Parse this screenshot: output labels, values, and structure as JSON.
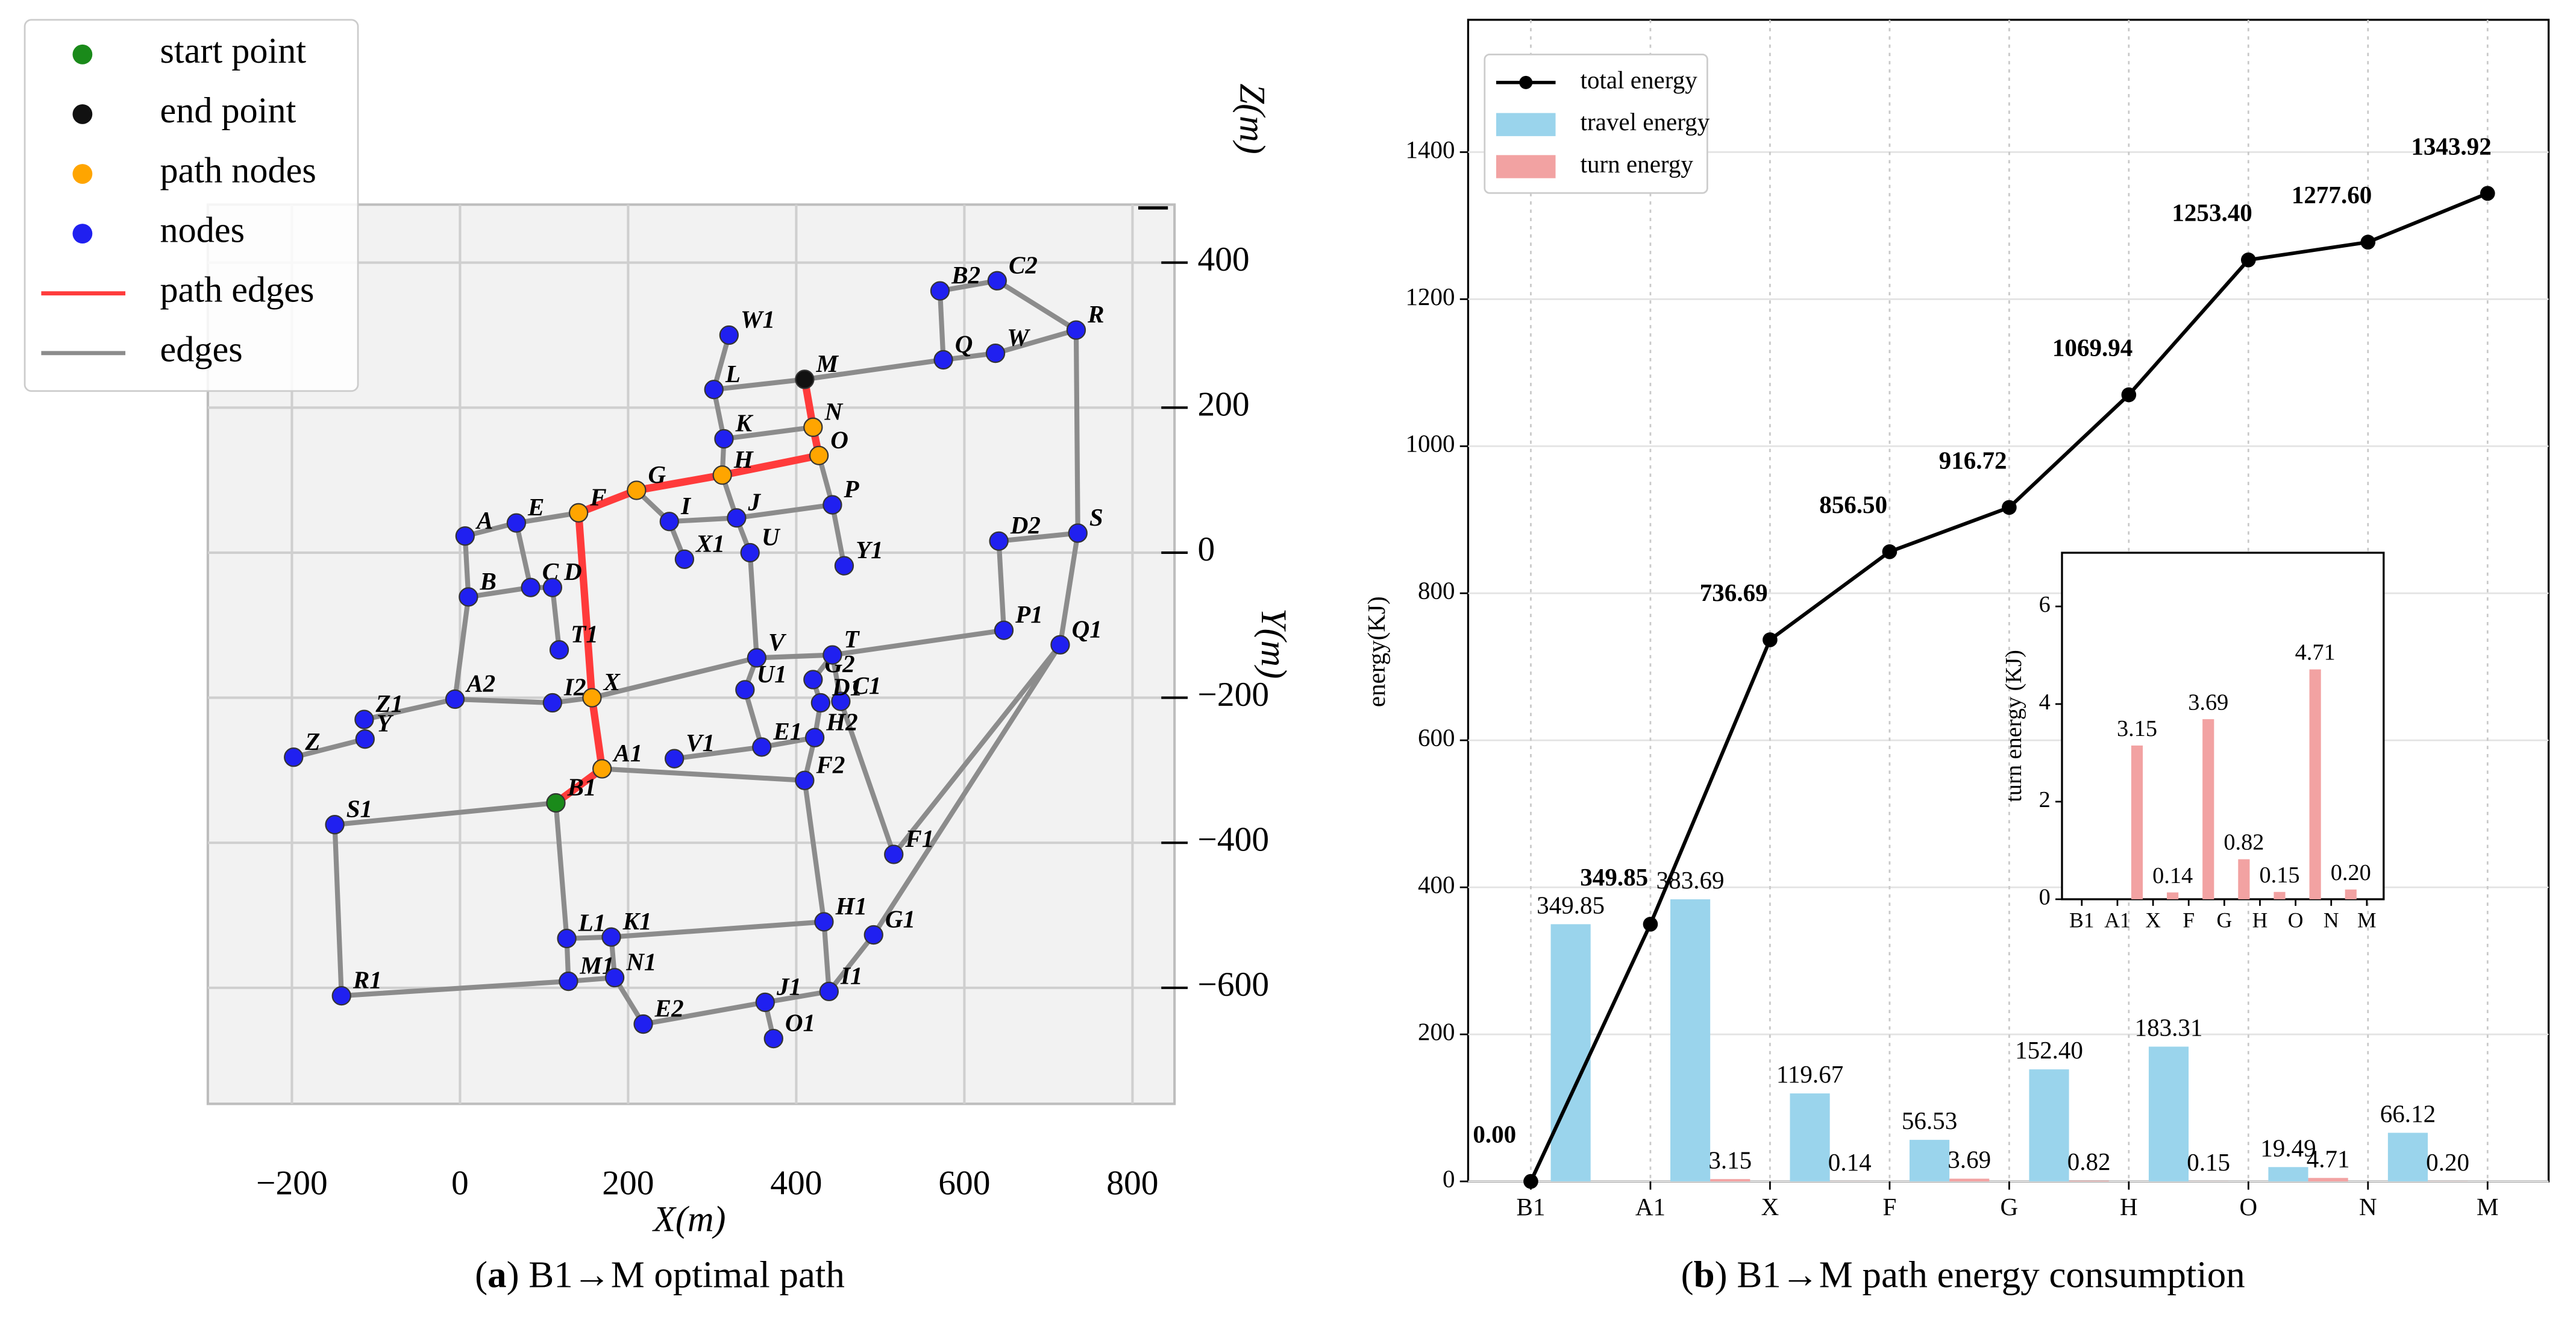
{
  "chart_data": [
    {
      "type": "network",
      "legend": [
        {
          "name": "start point",
          "color": "#1a8a1a",
          "kind": "point"
        },
        {
          "name": "end point",
          "color": "#111111",
          "kind": "point"
        },
        {
          "name": "path nodes",
          "color": "#ffa500",
          "kind": "point"
        },
        {
          "name": "nodes",
          "color": "#2020f0",
          "kind": "point"
        },
        {
          "name": "path edges",
          "color": "#ff3b3b",
          "kind": "line"
        },
        {
          "name": "edges",
          "color": "#8c8c8c",
          "kind": "line"
        }
      ],
      "xlabel": "X(m)",
      "ylabel": "Y(m)",
      "zlabel": "Z(m)",
      "xlim": [
        -300,
        850
      ],
      "ylim": [
        -760,
        480
      ],
      "xticks": [
        {
          "value": -200,
          "label": "−200"
        },
        0,
        200,
        400,
        600,
        800
      ],
      "yticks": [
        400,
        200,
        0,
        {
          "value": -200,
          "label": "−200"
        },
        {
          "value": -400,
          "label": "−400"
        },
        {
          "value": -600,
          "label": "−600"
        }
      ],
      "grid": true,
      "nodes": [
        {
          "label": "Z1",
          "x": -114,
          "y": -230
        },
        {
          "label": "Y",
          "x": -113,
          "y": -257
        },
        {
          "label": "Z",
          "x": -198,
          "y": -282
        },
        {
          "label": "A2",
          "x": -6,
          "y": -202
        },
        {
          "label": "I2",
          "x": 110,
          "y": -207
        },
        {
          "label": "X",
          "x": 157,
          "y": -200
        },
        {
          "label": "A1",
          "x": 169,
          "y": -298
        },
        {
          "label": "B1",
          "x": 114,
          "y": -345
        },
        {
          "label": "V1",
          "x": 255,
          "y": -284
        },
        {
          "label": "E1",
          "x": 359,
          "y": -268
        },
        {
          "label": "H2",
          "x": 422,
          "y": -255
        },
        {
          "label": "F2",
          "x": 410,
          "y": -314
        },
        {
          "label": "U1",
          "x": 339,
          "y": -189
        },
        {
          "label": "G2",
          "x": 420,
          "y": -175
        },
        {
          "label": "V",
          "x": 353,
          "y": -145
        },
        {
          "label": "T",
          "x": 443,
          "y": -141
        },
        {
          "label": "C1",
          "x": 453,
          "y": -205
        },
        {
          "label": "D1",
          "x": 429,
          "y": -207
        },
        {
          "label": "P1",
          "x": 647,
          "y": -107
        },
        {
          "label": "Q1",
          "x": 714,
          "y": -127
        },
        {
          "label": "D2",
          "x": 641,
          "y": 16
        },
        {
          "label": "S",
          "x": 735,
          "y": 27
        },
        {
          "label": "F1",
          "x": 516,
          "y": -416
        },
        {
          "label": "G1",
          "x": 492,
          "y": -527
        },
        {
          "label": "H1",
          "x": 433,
          "y": -509
        },
        {
          "label": "I1",
          "x": 439,
          "y": -605
        },
        {
          "label": "J1",
          "x": 363,
          "y": -620
        },
        {
          "label": "O1",
          "x": 373,
          "y": -670
        },
        {
          "label": "E2",
          "x": 218,
          "y": -650
        },
        {
          "label": "M1",
          "x": 129,
          "y": -591
        },
        {
          "label": "N1",
          "x": 184,
          "y": -586
        },
        {
          "label": "L1",
          "x": 127,
          "y": -532
        },
        {
          "label": "K1",
          "x": 180,
          "y": -530
        },
        {
          "label": "R1",
          "x": -141,
          "y": -611
        },
        {
          "label": "S1",
          "x": -149,
          "y": -375
        },
        {
          "label": "T1",
          "x": 118,
          "y": -134
        },
        {
          "label": "C",
          "x": 84,
          "y": -48
        },
        {
          "label": "D",
          "x": 110,
          "y": -48
        },
        {
          "label": "B",
          "x": 10,
          "y": -61
        },
        {
          "label": "A",
          "x": 6,
          "y": 23
        },
        {
          "label": "E",
          "x": 67,
          "y": 41
        },
        {
          "label": "F",
          "x": 141,
          "y": 55
        },
        {
          "label": "G",
          "x": 210,
          "y": 86
        },
        {
          "label": "I",
          "x": 249,
          "y": 43
        },
        {
          "label": "X1",
          "x": 267,
          "y": -9
        },
        {
          "label": "J",
          "x": 329,
          "y": 48
        },
        {
          "label": "U",
          "x": 345,
          "y": 0
        },
        {
          "label": "H",
          "x": 312,
          "y": 107
        },
        {
          "label": "P",
          "x": 443,
          "y": 66
        },
        {
          "label": "Y1",
          "x": 457,
          "y": -18
        },
        {
          "label": "O",
          "x": 427,
          "y": 134
        },
        {
          "label": "N",
          "x": 420,
          "y": 173
        },
        {
          "label": "M",
          "x": 410,
          "y": 239
        },
        {
          "label": "K",
          "x": 314,
          "y": 157
        },
        {
          "label": "L",
          "x": 302,
          "y": 225
        },
        {
          "label": "W1",
          "x": 320,
          "y": 300
        },
        {
          "label": "Q",
          "x": 575,
          "y": 266
        },
        {
          "label": "W",
          "x": 637,
          "y": 275
        },
        {
          "label": "B2",
          "x": 571,
          "y": 361
        },
        {
          "label": "C2",
          "x": 639,
          "y": 375
        },
        {
          "label": "R",
          "x": 733,
          "y": 307
        }
      ],
      "edges": [
        [
          "Z",
          "Y"
        ],
        [
          "Z1",
          "A2"
        ],
        [
          "A2",
          "I2"
        ],
        [
          "I2",
          "X"
        ],
        [
          "X",
          "V"
        ],
        [
          "V",
          "T"
        ],
        [
          "T",
          "P1"
        ],
        [
          "A2",
          "B"
        ],
        [
          "B",
          "A"
        ],
        [
          "A",
          "E"
        ],
        [
          "E",
          "F"
        ],
        [
          "E",
          "C"
        ],
        [
          "B",
          "C"
        ],
        [
          "C",
          "D"
        ],
        [
          "D",
          "T1"
        ],
        [
          "G",
          "I"
        ],
        [
          "I",
          "X1"
        ],
        [
          "I",
          "J"
        ],
        [
          "J",
          "P"
        ],
        [
          "J",
          "H"
        ],
        [
          "J",
          "U"
        ],
        [
          "U",
          "V"
        ],
        [
          "H",
          "K"
        ],
        [
          "K",
          "N"
        ],
        [
          "K",
          "L"
        ],
        [
          "L",
          "W1"
        ],
        [
          "L",
          "M"
        ],
        [
          "M",
          "Q"
        ],
        [
          "Q",
          "B2"
        ],
        [
          "Q",
          "W"
        ],
        [
          "B2",
          "C2"
        ],
        [
          "C2",
          "R"
        ],
        [
          "W",
          "R"
        ],
        [
          "R",
          "S"
        ],
        [
          "S",
          "D2"
        ],
        [
          "D2",
          "P1"
        ],
        [
          "S",
          "Q1"
        ],
        [
          "Q1",
          "F1"
        ],
        [
          "Q1",
          "G1"
        ],
        [
          "O",
          "P"
        ],
        [
          "P",
          "Y1"
        ],
        [
          "V",
          "U1"
        ],
        [
          "U1",
          "E1"
        ],
        [
          "E1",
          "H2"
        ],
        [
          "E1",
          "V1"
        ],
        [
          "A1",
          "F2"
        ],
        [
          "F2",
          "H1"
        ],
        [
          "F2",
          "H2"
        ],
        [
          "H2",
          "D1"
        ],
        [
          "D1",
          "G2"
        ],
        [
          "G2",
          "T"
        ],
        [
          "C1",
          "T"
        ],
        [
          "C1",
          "F1"
        ],
        [
          "G1",
          "I1"
        ],
        [
          "H1",
          "K1"
        ],
        [
          "K1",
          "L1"
        ],
        [
          "L1",
          "B1"
        ],
        [
          "L1",
          "M1"
        ],
        [
          "M1",
          "N1"
        ],
        [
          "N1",
          "K1"
        ],
        [
          "N1",
          "E2"
        ],
        [
          "E2",
          "J1"
        ],
        [
          "J1",
          "I1"
        ],
        [
          "J1",
          "O1"
        ],
        [
          "I1",
          "H1"
        ],
        [
          "M1",
          "R1"
        ],
        [
          "R1",
          "S1"
        ],
        [
          "S1",
          "B1"
        ]
      ],
      "path": [
        "B1",
        "A1",
        "X",
        "F",
        "G",
        "H",
        "O",
        "N",
        "M"
      ],
      "caption": [
        "(",
        "a",
        ") B1→M optimal path"
      ]
    },
    {
      "type": "bar_line",
      "categories": [
        "B1",
        "A1",
        "X",
        "F",
        "G",
        "H",
        "O",
        "N",
        "M"
      ],
      "series": [
        {
          "name": "total energy",
          "kind": "line",
          "color": "#000000",
          "values": [
            0,
            349.85,
            736.69,
            856.5,
            916.72,
            1069.94,
            1253.4,
            1277.6,
            1343.92
          ],
          "value_labels": [
            "0.00",
            "349.85",
            "736.69",
            "856.50",
            "916.72",
            "1069.94",
            "1253.40",
            "1277.60",
            "1343.92"
          ]
        },
        {
          "name": "travel energy",
          "kind": "bar",
          "color": "#9ad4ec",
          "values": [
            349.85,
            383.69,
            119.67,
            56.53,
            152.4,
            183.31,
            19.49,
            66.12,
            null
          ],
          "value_labels": [
            "349.85",
            "383.69",
            "119.67",
            "56.53",
            "152.40",
            "183.31",
            "19.49",
            "66.12",
            null
          ]
        },
        {
          "name": "turn energy",
          "kind": "bar",
          "color": "#f2a2a2",
          "values": [
            null,
            3.15,
            0.14,
            3.69,
            0.82,
            0.15,
            4.71,
            0.2,
            null
          ],
          "value_labels": [
            null,
            "3.15",
            "0.14",
            "3.69",
            "0.82",
            "0.15",
            "4.71",
            "0.20",
            null
          ]
        }
      ],
      "ylabel": "energy(KJ)",
      "ylim": [
        0,
        1580
      ],
      "yticks": [
        0,
        200,
        400,
        600,
        800,
        1000,
        1200,
        1400
      ],
      "grid": true,
      "legend": "upper left",
      "caption": [
        "(",
        "b",
        ") B1→M path energy consumption"
      ]
    },
    {
      "type": "bar",
      "inset": true,
      "categories": [
        "B1",
        "A1",
        "X",
        "F",
        "G",
        "H",
        "O",
        "N",
        "M"
      ],
      "values": [
        null,
        3.15,
        0.14,
        3.69,
        0.82,
        0.15,
        4.71,
        0.2,
        null
      ],
      "value_labels": [
        null,
        "3.15",
        "0.14",
        "3.69",
        "0.82",
        "0.15",
        "4.71",
        "0.20",
        null
      ],
      "color": "#f2a2a2",
      "ylabel": "turn energy (KJ)",
      "ylim": [
        0,
        7.1
      ],
      "yticks": [
        0,
        2,
        4,
        6
      ]
    }
  ]
}
